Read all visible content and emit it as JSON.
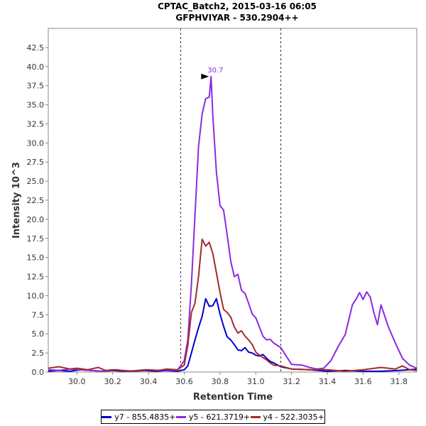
{
  "chart_data": {
    "type": "line",
    "title": "CPTAC_Batch2, 2015-03-16 06:05",
    "subtitle": "GFPHVIYAR - 530.2904++",
    "xlabel": "Retention Time",
    "ylabel": "Intensity 10^3",
    "xlim": [
      29.84,
      31.9
    ],
    "ylim": [
      0,
      45
    ],
    "xticks": [
      "30.0",
      "30.2",
      "30.4",
      "30.6",
      "30.8",
      "31.0",
      "31.2",
      "31.4",
      "31.6",
      "31.8"
    ],
    "xtick_values": [
      30.0,
      30.2,
      30.4,
      30.6,
      30.8,
      31.0,
      31.2,
      31.4,
      31.6,
      31.8
    ],
    "yticks": [
      "0.0",
      "2.5",
      "5.0",
      "7.5",
      "10.0",
      "12.5",
      "15.0",
      "17.5",
      "20.0",
      "22.5",
      "25.0",
      "27.5",
      "30.0",
      "32.5",
      "35.0",
      "37.5",
      "40.0",
      "42.5"
    ],
    "ytick_values": [
      0,
      2.5,
      5,
      7.5,
      10,
      12.5,
      15,
      17.5,
      20,
      22.5,
      25,
      27.5,
      30,
      32.5,
      35,
      37.5,
      40,
      42.5
    ],
    "boundaries": [
      30.58,
      31.14
    ],
    "peak_annotation": {
      "label": "30.7",
      "x": 30.75,
      "y": 38.7
    },
    "series": [
      {
        "name": "y7 - 855.4835+",
        "color": "#0000cc",
        "x": [
          29.84,
          29.9,
          29.96,
          30.02,
          30.08,
          30.14,
          30.2,
          30.26,
          30.32,
          30.38,
          30.44,
          30.5,
          30.56,
          30.58,
          30.6,
          30.62,
          30.64,
          30.66,
          30.68,
          30.7,
          30.72,
          30.74,
          30.76,
          30.78,
          30.8,
          30.82,
          30.84,
          30.86,
          30.88,
          30.9,
          30.92,
          30.94,
          30.96,
          30.98,
          31.0,
          31.02,
          31.04,
          31.06,
          31.08,
          31.1,
          31.14,
          31.2,
          31.3,
          31.4,
          31.5,
          31.6,
          31.7,
          31.8,
          31.86,
          31.9
        ],
        "values": [
          0.1,
          0.2,
          0.1,
          0.3,
          0.2,
          0.1,
          0.2,
          0.1,
          0.1,
          0.2,
          0.1,
          0.2,
          0.1,
          0.2,
          0.3,
          0.8,
          2.5,
          4.2,
          5.8,
          7.3,
          9.6,
          8.6,
          8.7,
          9.6,
          7.6,
          6.0,
          4.6,
          4.2,
          3.6,
          2.9,
          2.8,
          3.2,
          2.6,
          2.5,
          2.2,
          2.1,
          2.3,
          1.8,
          1.4,
          1.2,
          0.7,
          0.4,
          0.3,
          0.1,
          0.2,
          0.1,
          0.1,
          0.2,
          0.3,
          0.4
        ]
      },
      {
        "name": "y5 - 621.3719+",
        "color": "#8a2be2",
        "x": [
          29.84,
          29.9,
          29.96,
          30.02,
          30.08,
          30.14,
          30.2,
          30.26,
          30.32,
          30.38,
          30.44,
          30.5,
          30.56,
          30.58,
          30.6,
          30.62,
          30.64,
          30.66,
          30.68,
          30.7,
          30.72,
          30.74,
          30.75,
          30.76,
          30.78,
          30.8,
          30.82,
          30.84,
          30.86,
          30.88,
          30.9,
          30.92,
          30.94,
          30.96,
          30.98,
          31.0,
          31.02,
          31.04,
          31.06,
          31.08,
          31.1,
          31.14,
          31.2,
          31.26,
          31.3,
          31.34,
          31.38,
          31.42,
          31.46,
          31.5,
          31.54,
          31.56,
          31.58,
          31.6,
          31.62,
          31.64,
          31.66,
          31.68,
          31.7,
          31.74,
          31.78,
          31.82,
          31.86,
          31.9
        ],
        "values": [
          0.3,
          0.2,
          0.4,
          0.3,
          0.2,
          0.1,
          0.3,
          0.2,
          0.1,
          0.3,
          0.2,
          0.3,
          0.2,
          0.8,
          1.5,
          4.2,
          11.5,
          20.5,
          29.5,
          33.8,
          35.8,
          36.0,
          38.7,
          33.5,
          26.2,
          21.8,
          21.2,
          18.0,
          14.5,
          12.5,
          12.8,
          10.7,
          10.3,
          9.0,
          7.6,
          7.1,
          5.9,
          4.7,
          4.2,
          4.3,
          3.8,
          3.2,
          1.0,
          0.9,
          0.6,
          0.4,
          0.5,
          1.5,
          3.3,
          4.9,
          8.8,
          9.5,
          10.4,
          9.5,
          10.5,
          9.8,
          7.8,
          6.2,
          8.8,
          6.0,
          3.8,
          1.8,
          0.9,
          0.5
        ]
      },
      {
        "name": "y4 - 522.3035+",
        "color": "#a52a2a",
        "x": [
          29.84,
          29.9,
          29.96,
          30.0,
          30.06,
          30.12,
          30.16,
          30.22,
          30.28,
          30.34,
          30.4,
          30.46,
          30.5,
          30.56,
          30.6,
          30.62,
          30.64,
          30.66,
          30.68,
          30.7,
          30.72,
          30.74,
          30.76,
          30.78,
          30.8,
          30.82,
          30.84,
          30.86,
          30.88,
          30.9,
          30.92,
          30.94,
          30.96,
          30.98,
          31.0,
          31.02,
          31.04,
          31.06,
          31.08,
          31.1,
          31.14,
          31.2,
          31.3,
          31.4,
          31.5,
          31.6,
          31.7,
          31.78,
          31.82,
          31.86,
          31.9
        ],
        "values": [
          0.5,
          0.7,
          0.4,
          0.5,
          0.3,
          0.6,
          0.2,
          0.3,
          0.1,
          0.2,
          0.3,
          0.2,
          0.4,
          0.3,
          0.9,
          3.5,
          7.8,
          9.0,
          12.5,
          17.4,
          16.5,
          17.0,
          15.5,
          13.0,
          10.4,
          8.2,
          7.8,
          7.2,
          5.9,
          5.1,
          5.4,
          4.7,
          4.2,
          3.6,
          2.6,
          2.2,
          1.9,
          1.6,
          1.2,
          0.9,
          0.8,
          0.4,
          0.3,
          0.3,
          0.1,
          0.3,
          0.6,
          0.4,
          0.8,
          0.3,
          0.2
        ]
      }
    ]
  }
}
